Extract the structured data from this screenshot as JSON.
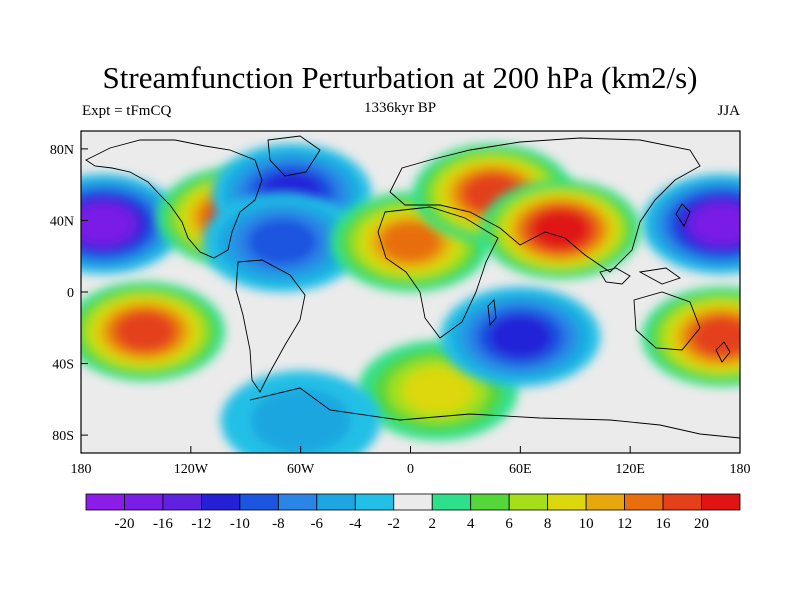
{
  "title": "Streamfunction Perturbation at 200 hPa (km2/s)",
  "subtitle_left": "Expt = tFmCQ",
  "subtitle_center": "1336kyr BP",
  "subtitle_right": "JJA",
  "map": {
    "projection": "cylindrical-equidistant",
    "lon_range": [
      -180,
      180
    ],
    "lat_range": [
      -90,
      90
    ],
    "lon_ticks": [
      "180",
      "120W",
      "60W",
      "0",
      "60E",
      "120E",
      "180"
    ],
    "lat_ticks": [
      "80N",
      "40N",
      "0",
      "40S",
      "80S"
    ],
    "background": "#ebebeb"
  },
  "colorbar": {
    "levels": [
      "-20",
      "-16",
      "-12",
      "-10",
      "-8",
      "-6",
      "-4",
      "-2",
      "2",
      "4",
      "6",
      "8",
      "10",
      "12",
      "16",
      "20"
    ],
    "colors": [
      "#8c1ce8",
      "#7a1ee6",
      "#5e22e0",
      "#2420d8",
      "#1b55e0",
      "#2a85e6",
      "#1fa6e0",
      "#22c0e6",
      "#ebebeb",
      "#2fe08a",
      "#55d63a",
      "#a5df1a",
      "#dcd80e",
      "#e7a80e",
      "#e86e0e",
      "#e4401a",
      "#e01414"
    ]
  },
  "fields": [
    {
      "name": "north-pacific-low",
      "lon": -168,
      "lat": 38,
      "level": -20
    },
    {
      "name": "north-pacific-low-east",
      "lon": 170,
      "lat": 38,
      "level": -20
    },
    {
      "name": "western-us-high",
      "lon": -95,
      "lat": 42,
      "level": 16
    },
    {
      "name": "eastern-canada-low",
      "lon": -65,
      "lat": 55,
      "level": -12
    },
    {
      "name": "us-southeast-low",
      "lon": -70,
      "lat": 28,
      "level": -10
    },
    {
      "name": "sahara-high",
      "lon": 0,
      "lat": 28,
      "level": 12
    },
    {
      "name": "europe-high",
      "lon": 45,
      "lat": 55,
      "level": 16
    },
    {
      "name": "tibetan-high",
      "lon": 82,
      "lat": 35,
      "level": 20
    },
    {
      "name": "south-pacific-high",
      "lon": -145,
      "lat": -22,
      "level": 16
    },
    {
      "name": "south-atlantic-high",
      "lon": 15,
      "lat": -55,
      "level": 8
    },
    {
      "name": "indian-ocean-low",
      "lon": 60,
      "lat": -25,
      "level": -12
    },
    {
      "name": "southwest-pacific-high",
      "lon": 170,
      "lat": -25,
      "level": 16
    },
    {
      "name": "southern-ocean-low",
      "lon": -60,
      "lat": -72,
      "level": -6
    }
  ]
}
